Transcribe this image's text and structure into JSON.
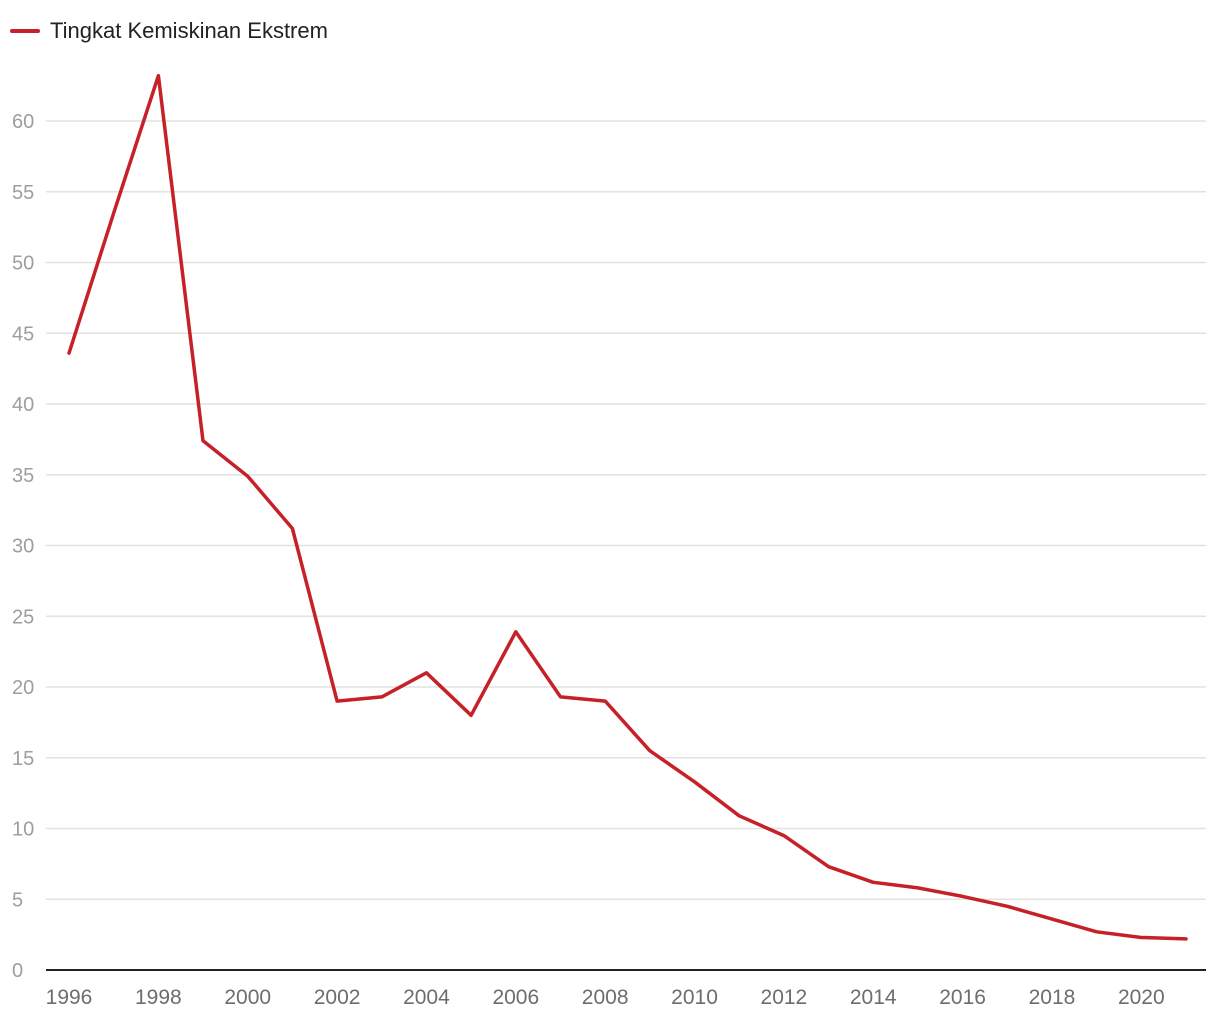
{
  "chart_data": {
    "type": "line",
    "title": "",
    "xlabel": "",
    "ylabel": "",
    "legend_position": "top-left",
    "grid": true,
    "xlim": [
      1996,
      2021
    ],
    "ylim": [
      0,
      65
    ],
    "x_ticks": [
      1996,
      1998,
      2000,
      2002,
      2004,
      2006,
      2008,
      2010,
      2012,
      2014,
      2016,
      2018,
      2020
    ],
    "y_ticks": [
      0,
      5,
      10,
      15,
      20,
      25,
      30,
      35,
      40,
      45,
      50,
      55,
      60
    ],
    "x": [
      1996,
      1997,
      1998,
      1999,
      2000,
      2001,
      2002,
      2003,
      2004,
      2005,
      2006,
      2007,
      2008,
      2009,
      2010,
      2011,
      2012,
      2013,
      2014,
      2015,
      2016,
      2017,
      2018,
      2019,
      2020,
      2021
    ],
    "series": [
      {
        "name": "Tingkat Kemiskinan Ekstrem",
        "color": "#c62128",
        "values": [
          43.6,
          53.5,
          63.2,
          37.4,
          34.9,
          31.2,
          19.0,
          19.3,
          21.0,
          18.0,
          23.9,
          19.3,
          19.0,
          15.5,
          13.3,
          10.9,
          9.5,
          7.3,
          6.2,
          5.8,
          5.2,
          4.5,
          3.6,
          2.7,
          2.3,
          2.2
        ]
      }
    ]
  }
}
